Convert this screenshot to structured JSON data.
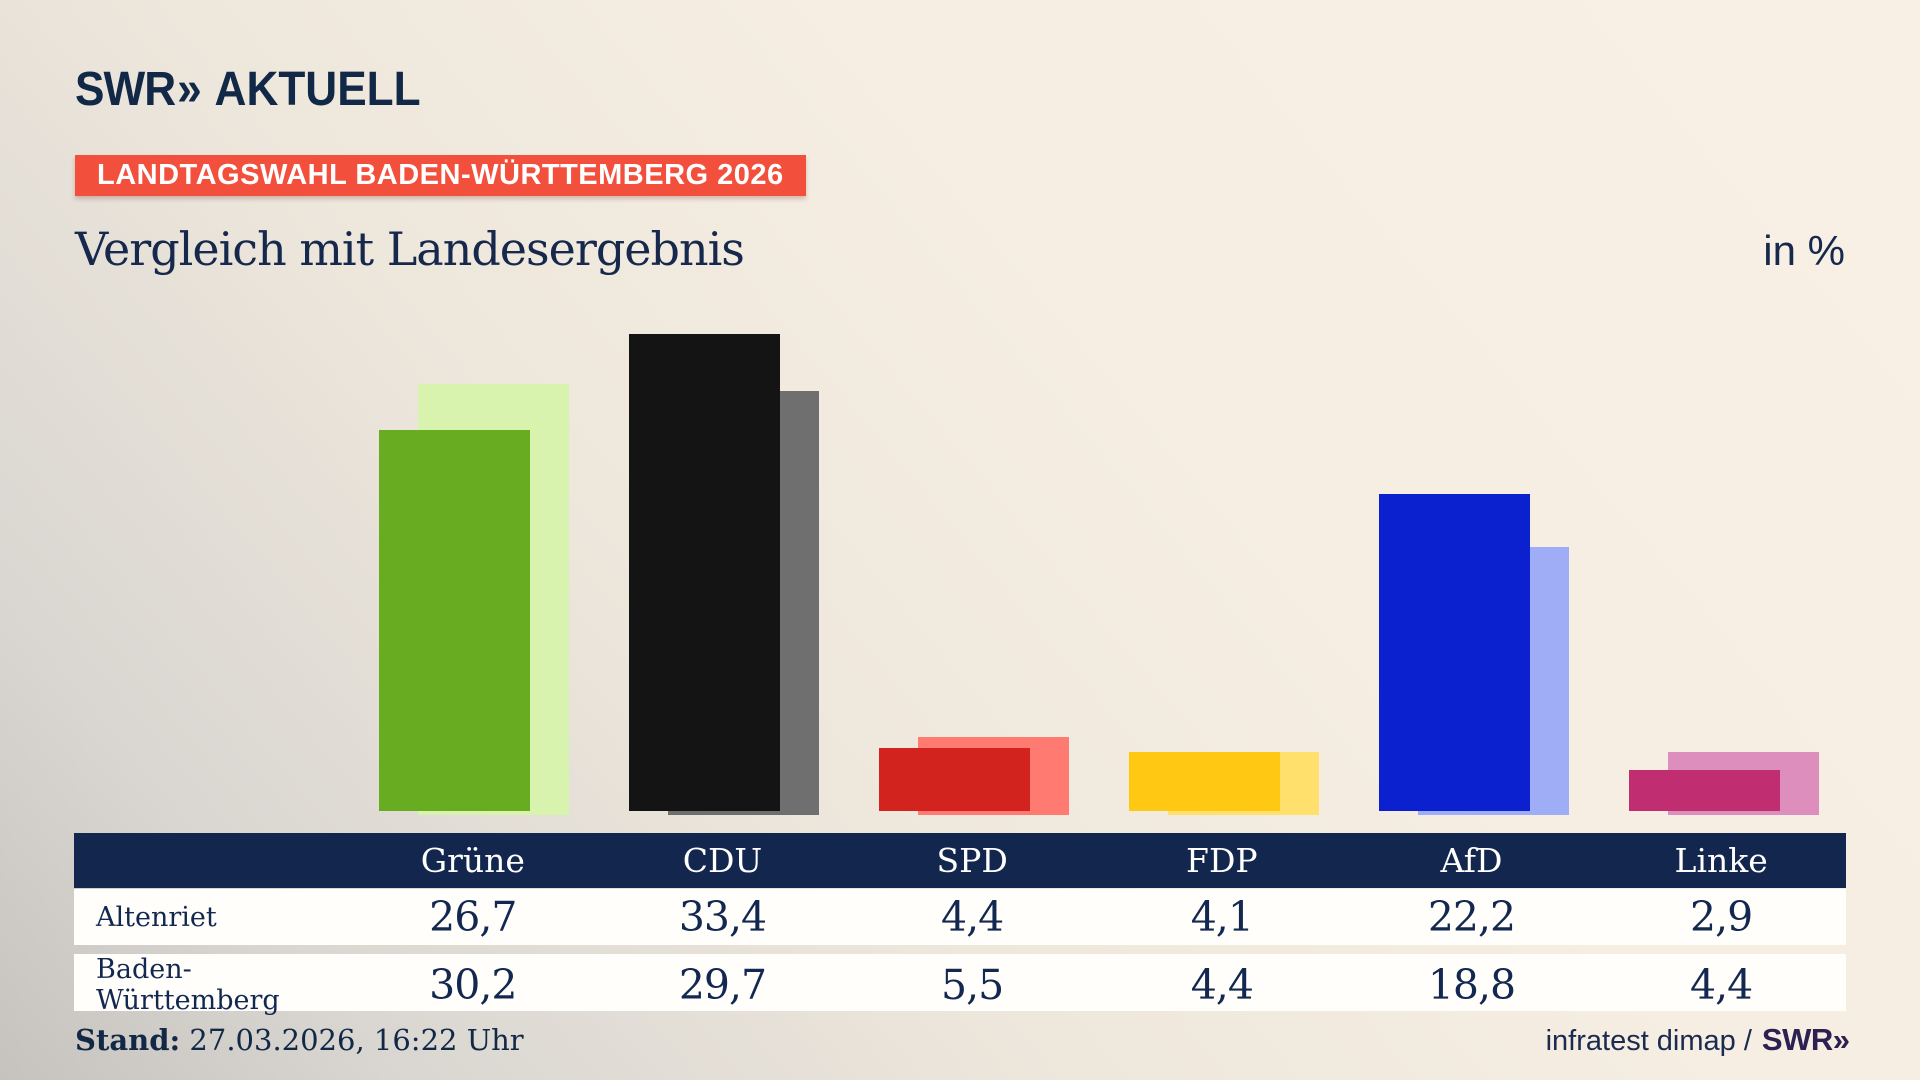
{
  "brand": {
    "logo_text": "SWR",
    "logo_chevrons": "»",
    "logo_suffix": "AKTUELL"
  },
  "badge": {
    "label": "LANDTAGSWAHL BADEN-WÜRTTEMBERG 2026",
    "bg": "#f2503c",
    "fg": "#ffffff"
  },
  "title": "Vergleich mit Landesergebnis",
  "unit_label": "in %",
  "chart_data": {
    "type": "bar",
    "categories": [
      "Grüne",
      "CDU",
      "SPD",
      "FDP",
      "AfD",
      "Linke"
    ],
    "series": [
      {
        "name": "Altenriet",
        "values": [
          26.7,
          33.4,
          4.4,
          4.1,
          22.2,
          2.9
        ]
      },
      {
        "name": "Baden-Württemberg",
        "values": [
          30.2,
          29.7,
          5.5,
          4.4,
          18.8,
          4.4
        ]
      }
    ],
    "colors": {
      "main": [
        "#68ad21",
        "#141414",
        "#d2231f",
        "#ffc913",
        "#0b20cf",
        "#c02e71"
      ],
      "light": [
        "#d8f3ae",
        "#6f6f6f",
        "#ff7b72",
        "#ffe06d",
        "#9fadf7",
        "#de8ebc"
      ]
    },
    "title": "Vergleich mit Landesergebnis",
    "unit": "in %",
    "value_format": "de-comma",
    "grid": false,
    "legend_position": "table-below",
    "ylim": [
      0,
      35
    ]
  },
  "table": {
    "header": [
      "",
      "Grüne",
      "CDU",
      "SPD",
      "FDP",
      "AfD",
      "Linke"
    ],
    "rows": [
      {
        "label": "Altenriet",
        "values": [
          "26,7",
          "33,4",
          "4,4",
          "4,1",
          "22,2",
          "2,9"
        ]
      },
      {
        "label": "Baden-Württemberg",
        "values": [
          "30,2",
          "29,7",
          "5,5",
          "4,4",
          "18,8",
          "4,4"
        ]
      }
    ]
  },
  "footer": {
    "stand_label": "Stand:",
    "stand_value": " 27.03.2026, 16:22 Uhr",
    "source_text": "infratest dimap /",
    "source_brand": "SWR",
    "source_chevrons": "»"
  }
}
